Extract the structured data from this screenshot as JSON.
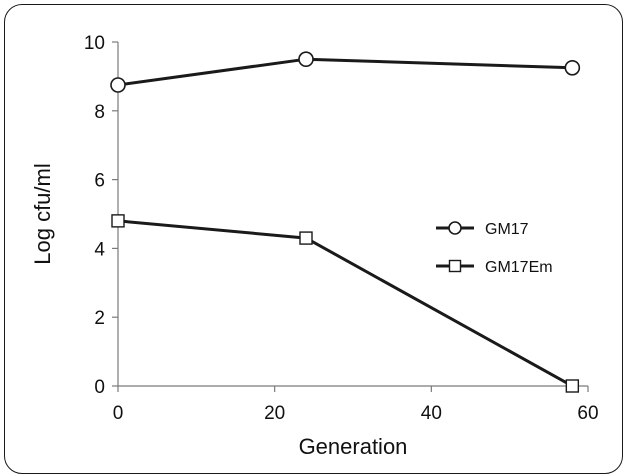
{
  "chart_data": {
    "type": "line",
    "xlabel": "Generation",
    "ylabel": "Log cfu/ml",
    "xlim": [
      0,
      60
    ],
    "ylim": [
      0,
      10
    ],
    "xticks": [
      "0",
      "20",
      "40",
      "60"
    ],
    "yticks": [
      "0",
      "2",
      "4",
      "6",
      "8",
      "10"
    ],
    "grid": false,
    "legend_position": "right-middle",
    "series": [
      {
        "name": "GM17",
        "marker": "circle",
        "x": [
          0,
          24,
          58
        ],
        "y": [
          8.75,
          9.5,
          9.25
        ]
      },
      {
        "name": "GM17Em",
        "marker": "square",
        "x": [
          0,
          24,
          58
        ],
        "y": [
          4.8,
          4.3,
          0.0
        ]
      }
    ],
    "colors": {
      "line": "#1a1a1a",
      "marker_fill": "#ffffff"
    }
  }
}
